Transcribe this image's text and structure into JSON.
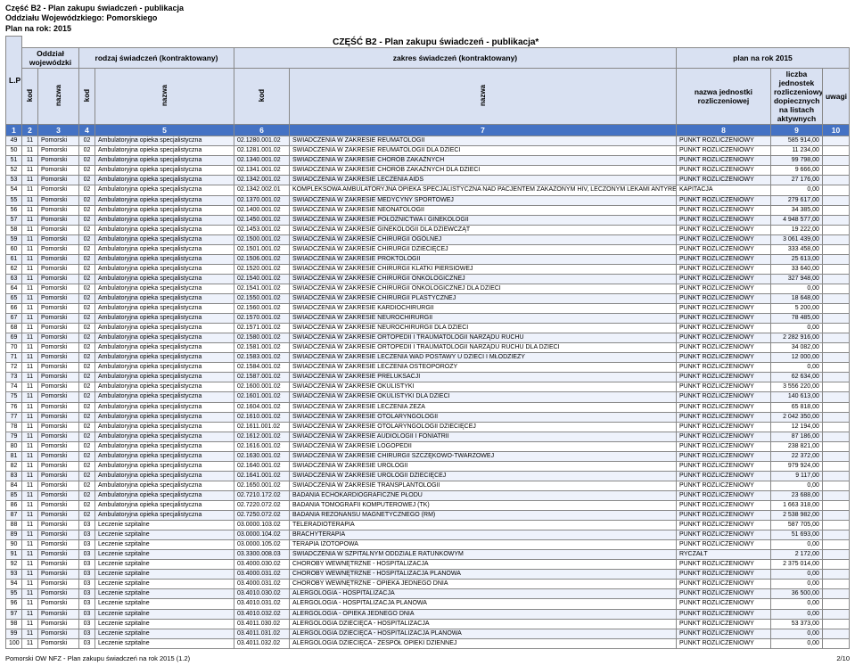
{
  "header": {
    "line1": "Część B2 - Plan zakupu świadczeń - publikacja",
    "line2": "Oddziału Wojewódzkiego: Pomorskiego",
    "line3": "Plan na rok: 2015"
  },
  "section_title": "CZĘŚĆ B2 - Plan zakupu świadczeń - publikacja*",
  "thead": {
    "lp": "L.P",
    "oddzial": "Oddział wojewódzki",
    "rodzaj": "rodzaj świadczeń (kontraktowany)",
    "zakres": "zakres świadczeń (kontraktowany)",
    "plan": "plan na rok 2015",
    "kod": "kod",
    "nazwa": "nazwa",
    "jednostka": "nazwa jednostki rozliczeniowej",
    "liczba": "liczba jednostek rozliczeniowych/po dopiecznych na listach aktywnych",
    "uwagi": "uwagi",
    "nums": [
      "1",
      "2",
      "3",
      "4",
      "5",
      "6",
      "7",
      "8",
      "9",
      "10"
    ]
  },
  "footer": {
    "left": "Pomorski OW NFZ - Plan zakupu świadczeń na rok 2015 (1.2)",
    "right": "2/10"
  },
  "rows": [
    {
      "lp": "49",
      "k1": "11",
      "n1": "Pomorski",
      "k2": "02",
      "n2": "Ambulatoryjna opieka specjalistyczna",
      "k3": "02.1280.001.02",
      "n3": "ŚWIADCZENIA W ZAKRESIE REUMATOLOGII",
      "jed": "PUNKT ROZLICZENIOWY",
      "val": "585 914,00"
    },
    {
      "lp": "50",
      "k1": "11",
      "n1": "Pomorski",
      "k2": "02",
      "n2": "Ambulatoryjna opieka specjalistyczna",
      "k3": "02.1281.001.02",
      "n3": "ŚWIADCZENIA W ZAKRESIE REUMATOLOGII DLA DZIECI",
      "jed": "PUNKT ROZLICZENIOWY",
      "val": "11 234,00"
    },
    {
      "lp": "51",
      "k1": "11",
      "n1": "Pomorski",
      "k2": "02",
      "n2": "Ambulatoryjna opieka specjalistyczna",
      "k3": "02.1340.001.02",
      "n3": "ŚWIADCZENIA W ZAKRESIE CHORÓB ZAKAŹNYCH",
      "jed": "PUNKT ROZLICZENIOWY",
      "val": "99 798,00"
    },
    {
      "lp": "52",
      "k1": "11",
      "n1": "Pomorski",
      "k2": "02",
      "n2": "Ambulatoryjna opieka specjalistyczna",
      "k3": "02.1341.001.02",
      "n3": "ŚWIADCZENIA W ZAKRESIE CHORÓB ZAKAŹNYCH DLA DZIECI",
      "jed": "PUNKT ROZLICZENIOWY",
      "val": "9 666,00"
    },
    {
      "lp": "53",
      "k1": "11",
      "n1": "Pomorski",
      "k2": "02",
      "n2": "Ambulatoryjna opieka specjalistyczna",
      "k3": "02.1342.001.02",
      "n3": "ŚWIADCZENIA W ZAKRESIE LECZENIA AIDS",
      "jed": "PUNKT ROZLICZENIOWY",
      "val": "27 176,00"
    },
    {
      "lp": "54",
      "k1": "11",
      "n1": "Pomorski",
      "k2": "02",
      "n2": "Ambulatoryjna opieka specjalistyczna",
      "k3": "02.1342.002.01",
      "n3": "KOMPLEKSOWA AMBULATORYJNA OPIEKA SPECJALISTYCZNA NAD PACJENTEM ZAKAŻONYM HIV, LECZONYM LEKAMI ANTYRETROWIRUSOWYMI (ARV)",
      "jed": "KAPITACJA",
      "val": "0,00",
      "wrap": true
    },
    {
      "lp": "55",
      "k1": "11",
      "n1": "Pomorski",
      "k2": "02",
      "n2": "Ambulatoryjna opieka specjalistyczna",
      "k3": "02.1370.001.02",
      "n3": "ŚWIADCZENIA W ZAKRESIE MEDYCYNY SPORTOWEJ",
      "jed": "PUNKT ROZLICZENIOWY",
      "val": "279 617,00"
    },
    {
      "lp": "56",
      "k1": "11",
      "n1": "Pomorski",
      "k2": "02",
      "n2": "Ambulatoryjna opieka specjalistyczna",
      "k3": "02.1400.001.02",
      "n3": "ŚWIADCZENIA W ZAKRESIE NEONATOLOGII",
      "jed": "PUNKT ROZLICZENIOWY",
      "val": "34 385,00"
    },
    {
      "lp": "57",
      "k1": "11",
      "n1": "Pomorski",
      "k2": "02",
      "n2": "Ambulatoryjna opieka specjalistyczna",
      "k3": "02.1450.001.02",
      "n3": "ŚWIADCZENIA W ZAKRESIE POŁOŻNICTWA I GINEKOLOGII",
      "jed": "PUNKT ROZLICZENIOWY",
      "val": "4 948 577,00"
    },
    {
      "lp": "58",
      "k1": "11",
      "n1": "Pomorski",
      "k2": "02",
      "n2": "Ambulatoryjna opieka specjalistyczna",
      "k3": "02.1453.001.02",
      "n3": "ŚWIADCZENIA W ZAKRESIE GINEKOLOGII DLA DZIEWCZĄT",
      "jed": "PUNKT ROZLICZENIOWY",
      "val": "19 222,00"
    },
    {
      "lp": "59",
      "k1": "11",
      "n1": "Pomorski",
      "k2": "02",
      "n2": "Ambulatoryjna opieka specjalistyczna",
      "k3": "02.1500.001.02",
      "n3": "ŚWIADCZENIA W ZAKRESIE CHIRURGII OGÓLNEJ",
      "jed": "PUNKT ROZLICZENIOWY",
      "val": "3 061 439,00"
    },
    {
      "lp": "60",
      "k1": "11",
      "n1": "Pomorski",
      "k2": "02",
      "n2": "Ambulatoryjna opieka specjalistyczna",
      "k3": "02.1501.001.02",
      "n3": "ŚWIADCZENIA W ZAKRESIE CHIRURGII DZIECIĘCEJ",
      "jed": "PUNKT ROZLICZENIOWY",
      "val": "333 458,00"
    },
    {
      "lp": "61",
      "k1": "11",
      "n1": "Pomorski",
      "k2": "02",
      "n2": "Ambulatoryjna opieka specjalistyczna",
      "k3": "02.1506.001.02",
      "n3": "ŚWIADCZENIA W ZAKRESIE PROKTOLOGII",
      "jed": "PUNKT ROZLICZENIOWY",
      "val": "25 613,00"
    },
    {
      "lp": "62",
      "k1": "11",
      "n1": "Pomorski",
      "k2": "02",
      "n2": "Ambulatoryjna opieka specjalistyczna",
      "k3": "02.1520.001.02",
      "n3": "ŚWIADCZENIA W ZAKRESIE CHIRURGII KLATKI PIERSIOWEJ",
      "jed": "PUNKT ROZLICZENIOWY",
      "val": "33 640,00"
    },
    {
      "lp": "63",
      "k1": "11",
      "n1": "Pomorski",
      "k2": "02",
      "n2": "Ambulatoryjna opieka specjalistyczna",
      "k3": "02.1540.001.02",
      "n3": "ŚWIADCZENIA W ZAKRESIE CHIRURGII ONKOLOGICZNEJ",
      "jed": "PUNKT ROZLICZENIOWY",
      "val": "327 948,00"
    },
    {
      "lp": "64",
      "k1": "11",
      "n1": "Pomorski",
      "k2": "02",
      "n2": "Ambulatoryjna opieka specjalistyczna",
      "k3": "02.1541.001.02",
      "n3": "ŚWIADCZENIA W ZAKRESIE CHIRURGII ONKOLOGICZNEJ DLA DZIECI",
      "jed": "PUNKT ROZLICZENIOWY",
      "val": "0,00"
    },
    {
      "lp": "65",
      "k1": "11",
      "n1": "Pomorski",
      "k2": "02",
      "n2": "Ambulatoryjna opieka specjalistyczna",
      "k3": "02.1550.001.02",
      "n3": "ŚWIADCZENIA W ZAKRESIE CHIRURGII PLASTYCZNEJ",
      "jed": "PUNKT ROZLICZENIOWY",
      "val": "18 648,00"
    },
    {
      "lp": "66",
      "k1": "11",
      "n1": "Pomorski",
      "k2": "02",
      "n2": "Ambulatoryjna opieka specjalistyczna",
      "k3": "02.1560.001.02",
      "n3": "ŚWIADCZENIA W ZAKRESIE KARDIOCHIRURGII",
      "jed": "PUNKT ROZLICZENIOWY",
      "val": "5 200,00"
    },
    {
      "lp": "67",
      "k1": "11",
      "n1": "Pomorski",
      "k2": "02",
      "n2": "Ambulatoryjna opieka specjalistyczna",
      "k3": "02.1570.001.02",
      "n3": "ŚWIADCZENIA W ZAKRESIE NEUROCHIRURGII",
      "jed": "PUNKT ROZLICZENIOWY",
      "val": "78 485,00"
    },
    {
      "lp": "68",
      "k1": "11",
      "n1": "Pomorski",
      "k2": "02",
      "n2": "Ambulatoryjna opieka specjalistyczna",
      "k3": "02.1571.001.02",
      "n3": "ŚWIADCZENIA W ZAKRESIE NEUROCHIRURGII DLA DZIECI",
      "jed": "PUNKT ROZLICZENIOWY",
      "val": "0,00"
    },
    {
      "lp": "69",
      "k1": "11",
      "n1": "Pomorski",
      "k2": "02",
      "n2": "Ambulatoryjna opieka specjalistyczna",
      "k3": "02.1580.001.02",
      "n3": "ŚWIADCZENIA W ZAKRESIE ORTOPEDII I TRAUMATOLOGII NARZĄDU RUCHU",
      "jed": "PUNKT ROZLICZENIOWY",
      "val": "2 282 916,00"
    },
    {
      "lp": "70",
      "k1": "11",
      "n1": "Pomorski",
      "k2": "02",
      "n2": "Ambulatoryjna opieka specjalistyczna",
      "k3": "02.1581.001.02",
      "n3": "ŚWIADCZENIA W ZAKRESIE ORTOPEDII I TRAUMATOLOGII NARZĄDU RUCHU DLA DZIECI",
      "jed": "PUNKT ROZLICZENIOWY",
      "val": "34 082,00"
    },
    {
      "lp": "71",
      "k1": "11",
      "n1": "Pomorski",
      "k2": "02",
      "n2": "Ambulatoryjna opieka specjalistyczna",
      "k3": "02.1583.001.02",
      "n3": "ŚWIADCZENIA W ZAKRESIE LECZENIA WAD POSTAWY U DZIECI I MŁODZIEŻY",
      "jed": "PUNKT ROZLICZENIOWY",
      "val": "12 000,00"
    },
    {
      "lp": "72",
      "k1": "11",
      "n1": "Pomorski",
      "k2": "02",
      "n2": "Ambulatoryjna opieka specjalistyczna",
      "k3": "02.1584.001.02",
      "n3": "ŚWIADCZENIA W ZAKRESIE LECZENIA OSTEOPOROZY",
      "jed": "PUNKT ROZLICZENIOWY",
      "val": "0,00"
    },
    {
      "lp": "73",
      "k1": "11",
      "n1": "Pomorski",
      "k2": "02",
      "n2": "Ambulatoryjna opieka specjalistyczna",
      "k3": "02.1587.001.02",
      "n3": "ŚWIADCZENIA W ZAKRESIE PRELUKSACJI",
      "jed": "PUNKT ROZLICZENIOWY",
      "val": "62 634,00"
    },
    {
      "lp": "74",
      "k1": "11",
      "n1": "Pomorski",
      "k2": "02",
      "n2": "Ambulatoryjna opieka specjalistyczna",
      "k3": "02.1600.001.02",
      "n3": "ŚWIADCZENIA W ZAKRESIE OKULISTYKI",
      "jed": "PUNKT ROZLICZENIOWY",
      "val": "3 556 220,00"
    },
    {
      "lp": "75",
      "k1": "11",
      "n1": "Pomorski",
      "k2": "02",
      "n2": "Ambulatoryjna opieka specjalistyczna",
      "k3": "02.1601.001.02",
      "n3": "ŚWIADCZENIA W ZAKRESIE OKULISTYKI DLA DZIECI",
      "jed": "PUNKT ROZLICZENIOWY",
      "val": "140 613,00"
    },
    {
      "lp": "76",
      "k1": "11",
      "n1": "Pomorski",
      "k2": "02",
      "n2": "Ambulatoryjna opieka specjalistyczna",
      "k3": "02.1604.001.02",
      "n3": "ŚWIADCZENIA W ZAKRESIE LECZENIA ZEZA",
      "jed": "PUNKT ROZLICZENIOWY",
      "val": "65 818,00"
    },
    {
      "lp": "77",
      "k1": "11",
      "n1": "Pomorski",
      "k2": "02",
      "n2": "Ambulatoryjna opieka specjalistyczna",
      "k3": "02.1610.001.02",
      "n3": "ŚWIADCZENIA W ZAKRESIE OTOLARYNGOLOGII",
      "jed": "PUNKT ROZLICZENIOWY",
      "val": "2 042 350,00"
    },
    {
      "lp": "78",
      "k1": "11",
      "n1": "Pomorski",
      "k2": "02",
      "n2": "Ambulatoryjna opieka specjalistyczna",
      "k3": "02.1611.001.02",
      "n3": "ŚWIADCZENIA W ZAKRESIE OTOLARYNGOLOGII DZIECIĘCEJ",
      "jed": "PUNKT ROZLICZENIOWY",
      "val": "12 194,00"
    },
    {
      "lp": "79",
      "k1": "11",
      "n1": "Pomorski",
      "k2": "02",
      "n2": "Ambulatoryjna opieka specjalistyczna",
      "k3": "02.1612.001.02",
      "n3": "ŚWIADCZENIA W ZAKRESIE AUDIOLOGII I FONIATRII",
      "jed": "PUNKT ROZLICZENIOWY",
      "val": "87 186,00"
    },
    {
      "lp": "80",
      "k1": "11",
      "n1": "Pomorski",
      "k2": "02",
      "n2": "Ambulatoryjna opieka specjalistyczna",
      "k3": "02.1616.001.02",
      "n3": "ŚWIADCZENIA W ZAKRESIE LOGOPEDII",
      "jed": "PUNKT ROZLICZENIOWY",
      "val": "238 821,00"
    },
    {
      "lp": "81",
      "k1": "11",
      "n1": "Pomorski",
      "k2": "02",
      "n2": "Ambulatoryjna opieka specjalistyczna",
      "k3": "02.1630.001.02",
      "n3": "ŚWIADCZENIA W ZAKRESIE CHIRURGII SZCZĘKOWO-TWARZOWEJ",
      "jed": "PUNKT ROZLICZENIOWY",
      "val": "22 372,00"
    },
    {
      "lp": "82",
      "k1": "11",
      "n1": "Pomorski",
      "k2": "02",
      "n2": "Ambulatoryjna opieka specjalistyczna",
      "k3": "02.1640.001.02",
      "n3": "ŚWIADCZENIA W ZAKRESIE UROLOGII",
      "jed": "PUNKT ROZLICZENIOWY",
      "val": "979 924,00"
    },
    {
      "lp": "83",
      "k1": "11",
      "n1": "Pomorski",
      "k2": "02",
      "n2": "Ambulatoryjna opieka specjalistyczna",
      "k3": "02.1641.001.02",
      "n3": "ŚWIADCZENIA W ZAKRESIE UROLOGII DZIECIĘCEJ",
      "jed": "PUNKT ROZLICZENIOWY",
      "val": "9 117,00"
    },
    {
      "lp": "84",
      "k1": "11",
      "n1": "Pomorski",
      "k2": "02",
      "n2": "Ambulatoryjna opieka specjalistyczna",
      "k3": "02.1650.001.02",
      "n3": "ŚWIADCZENIA W ZAKRESIE TRANSPLANTOLOGII",
      "jed": "PUNKT ROZLICZENIOWY",
      "val": "0,00"
    },
    {
      "lp": "85",
      "k1": "11",
      "n1": "Pomorski",
      "k2": "02",
      "n2": "Ambulatoryjna opieka specjalistyczna",
      "k3": "02.7210.172.02",
      "n3": "BADANIA ECHOKARDIOGRAFICZNE PŁODU",
      "jed": "PUNKT ROZLICZENIOWY",
      "val": "23 688,00"
    },
    {
      "lp": "86",
      "k1": "11",
      "n1": "Pomorski",
      "k2": "02",
      "n2": "Ambulatoryjna opieka specjalistyczna",
      "k3": "02.7220.072.02",
      "n3": "BADANIA TOMOGRAFII KOMPUTEROWEJ (TK)",
      "jed": "PUNKT ROZLICZENIOWY",
      "val": "1 663 318,00"
    },
    {
      "lp": "87",
      "k1": "11",
      "n1": "Pomorski",
      "k2": "02",
      "n2": "Ambulatoryjna opieka specjalistyczna",
      "k3": "02.7250.072.02",
      "n3": "BADANIA REZONANSU MAGNETYCZNEGO (RM)",
      "jed": "PUNKT ROZLICZENIOWY",
      "val": "2 538 982,00"
    },
    {
      "lp": "88",
      "k1": "11",
      "n1": "Pomorski",
      "k2": "03",
      "n2": "Leczenie szpitalne",
      "k3": "03.0000.103.02",
      "n3": "TELERADIOTERAPIA",
      "jed": "PUNKT ROZLICZENIOWY",
      "val": "587 705,00"
    },
    {
      "lp": "89",
      "k1": "11",
      "n1": "Pomorski",
      "k2": "03",
      "n2": "Leczenie szpitalne",
      "k3": "03.0000.104.02",
      "n3": "BRACHYTERAPIA",
      "jed": "PUNKT ROZLICZENIOWY",
      "val": "51 693,00"
    },
    {
      "lp": "90",
      "k1": "11",
      "n1": "Pomorski",
      "k2": "03",
      "n2": "Leczenie szpitalne",
      "k3": "03.0000.105.02",
      "n3": "TERAPIA IZOTOPOWA",
      "jed": "PUNKT ROZLICZENIOWY",
      "val": "0,00"
    },
    {
      "lp": "91",
      "k1": "11",
      "n1": "Pomorski",
      "k2": "03",
      "n2": "Leczenie szpitalne",
      "k3": "03.3300.008.03",
      "n3": "ŚWIADCZENIA W SZPITALNYM ODDZIALE RATUNKOWYM",
      "jed": "RYCZAŁT",
      "val": "2 172,00"
    },
    {
      "lp": "92",
      "k1": "11",
      "n1": "Pomorski",
      "k2": "03",
      "n2": "Leczenie szpitalne",
      "k3": "03.4000.030.02",
      "n3": "CHOROBY WEWNĘTRZNE - HOSPITALIZACJA",
      "jed": "PUNKT ROZLICZENIOWY",
      "val": "2 375 014,00"
    },
    {
      "lp": "93",
      "k1": "11",
      "n1": "Pomorski",
      "k2": "03",
      "n2": "Leczenie szpitalne",
      "k3": "03.4000.031.02",
      "n3": "CHOROBY WEWNĘTRZNE - HOSPITALIZACJA PLANOWA",
      "jed": "PUNKT ROZLICZENIOWY",
      "val": "0,00"
    },
    {
      "lp": "94",
      "k1": "11",
      "n1": "Pomorski",
      "k2": "03",
      "n2": "Leczenie szpitalne",
      "k3": "03.4000.031.02",
      "n3": "CHOROBY WEWNĘTRZNE - OPIEKA JEDNEGO DNIA",
      "jed": "PUNKT ROZLICZENIOWY",
      "val": "0,00"
    },
    {
      "lp": "95",
      "k1": "11",
      "n1": "Pomorski",
      "k2": "03",
      "n2": "Leczenie szpitalne",
      "k3": "03.4010.030.02",
      "n3": "ALERGOLOGIA - HOSPITALIZACJA",
      "jed": "PUNKT ROZLICZENIOWY",
      "val": "36 500,00"
    },
    {
      "lp": "96",
      "k1": "11",
      "n1": "Pomorski",
      "k2": "03",
      "n2": "Leczenie szpitalne",
      "k3": "03.4010.031.02",
      "n3": "ALERGOLOGIA - HOSPITALIZACJA PLANOWA",
      "jed": "PUNKT ROZLICZENIOWY",
      "val": "0,00"
    },
    {
      "lp": "97",
      "k1": "11",
      "n1": "Pomorski",
      "k2": "03",
      "n2": "Leczenie szpitalne",
      "k3": "03.4010.032.02",
      "n3": "ALERGOLOGIA - OPIEKA JEDNEGO DNIA",
      "jed": "PUNKT ROZLICZENIOWY",
      "val": "0,00"
    },
    {
      "lp": "98",
      "k1": "11",
      "n1": "Pomorski",
      "k2": "03",
      "n2": "Leczenie szpitalne",
      "k3": "03.4011.030.02",
      "n3": "ALERGOLOGIA DZIECIĘCA - HOSPITALIZACJA",
      "jed": "PUNKT ROZLICZENIOWY",
      "val": "53 373,00"
    },
    {
      "lp": "99",
      "k1": "11",
      "n1": "Pomorski",
      "k2": "03",
      "n2": "Leczenie szpitalne",
      "k3": "03.4011.031.02",
      "n3": "ALERGOLOGIA DZIECIĘCA - HOSPITALIZACJA PLANOWA",
      "jed": "PUNKT ROZLICZENIOWY",
      "val": "0,00"
    },
    {
      "lp": "100",
      "k1": "11",
      "n1": "Pomorski",
      "k2": "03",
      "n2": "Leczenie szpitalne",
      "k3": "03.4011.032.02",
      "n3": "ALERGOLOGIA DZIECIĘCA - ZESPÓŁ OPIEKI DZIENNEJ",
      "jed": "PUNKT ROZLICZENIOWY",
      "val": "0,00"
    }
  ]
}
